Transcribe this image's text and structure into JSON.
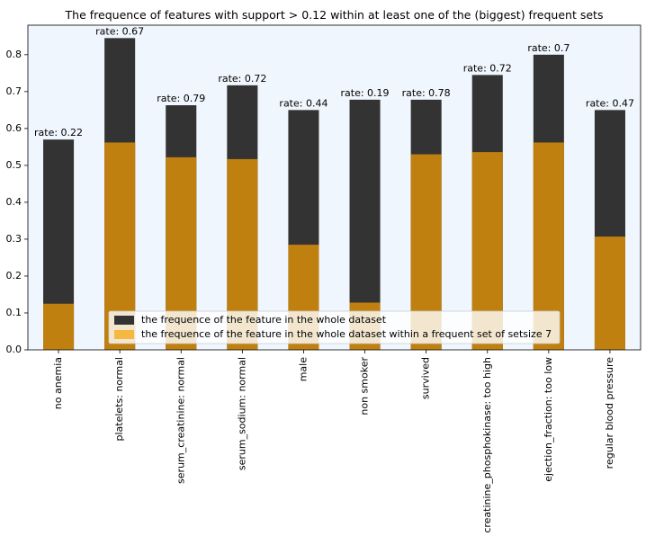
{
  "chart_data": {
    "type": "bar",
    "title": "The frequence of features with support > 0.12 within at least one of the (biggest) frequent sets",
    "xlabel": "",
    "ylabel": "",
    "ylim": [
      0,
      0.88
    ],
    "yticks": [
      0.0,
      0.1,
      0.2,
      0.3,
      0.4,
      0.5,
      0.6,
      0.7,
      0.8
    ],
    "ytick_labels": [
      "0.0",
      "0.1",
      "0.2",
      "0.3",
      "0.4",
      "0.5",
      "0.6",
      "0.7",
      "0.8"
    ],
    "categories": [
      "no anemia",
      "platelets: normal",
      "serum_creatinine: normal",
      "serum_sodium: normal",
      "male",
      "non smoker",
      "survived",
      "creatinine_phosphokinase: too high",
      "ejection_fraction: too low",
      "regular blood pressure"
    ],
    "series": [
      {
        "name": "the frequence of the feature in the whole dataset",
        "color": "#333333",
        "values": [
          0.57,
          0.845,
          0.663,
          0.717,
          0.65,
          0.678,
          0.678,
          0.745,
          0.8,
          0.65
        ]
      },
      {
        "name": "the frequence of the feature in the whole dataset within a frequent set of setsize 7",
        "color": "#c0800f",
        "values": [
          0.125,
          0.562,
          0.522,
          0.517,
          0.285,
          0.128,
          0.53,
          0.536,
          0.562,
          0.307
        ]
      }
    ],
    "bar_labels": [
      "rate: 0.22",
      "rate: 0.67",
      "rate: 0.79",
      "rate: 0.72",
      "rate: 0.44",
      "rate: 0.19",
      "rate: 0.78",
      "rate: 0.72",
      "rate: 0.7",
      "rate: 0.47"
    ],
    "legend": {
      "placement": "lower-center",
      "entries": [
        {
          "label": "the frequence of the feature in the whole dataset",
          "color": "#333333"
        },
        {
          "label": "the frequence of the feature in the whole dataset within a frequent set of setsize 7",
          "color": "#f5b942"
        }
      ]
    },
    "background_color": "#f0f6fd",
    "grid": false
  }
}
